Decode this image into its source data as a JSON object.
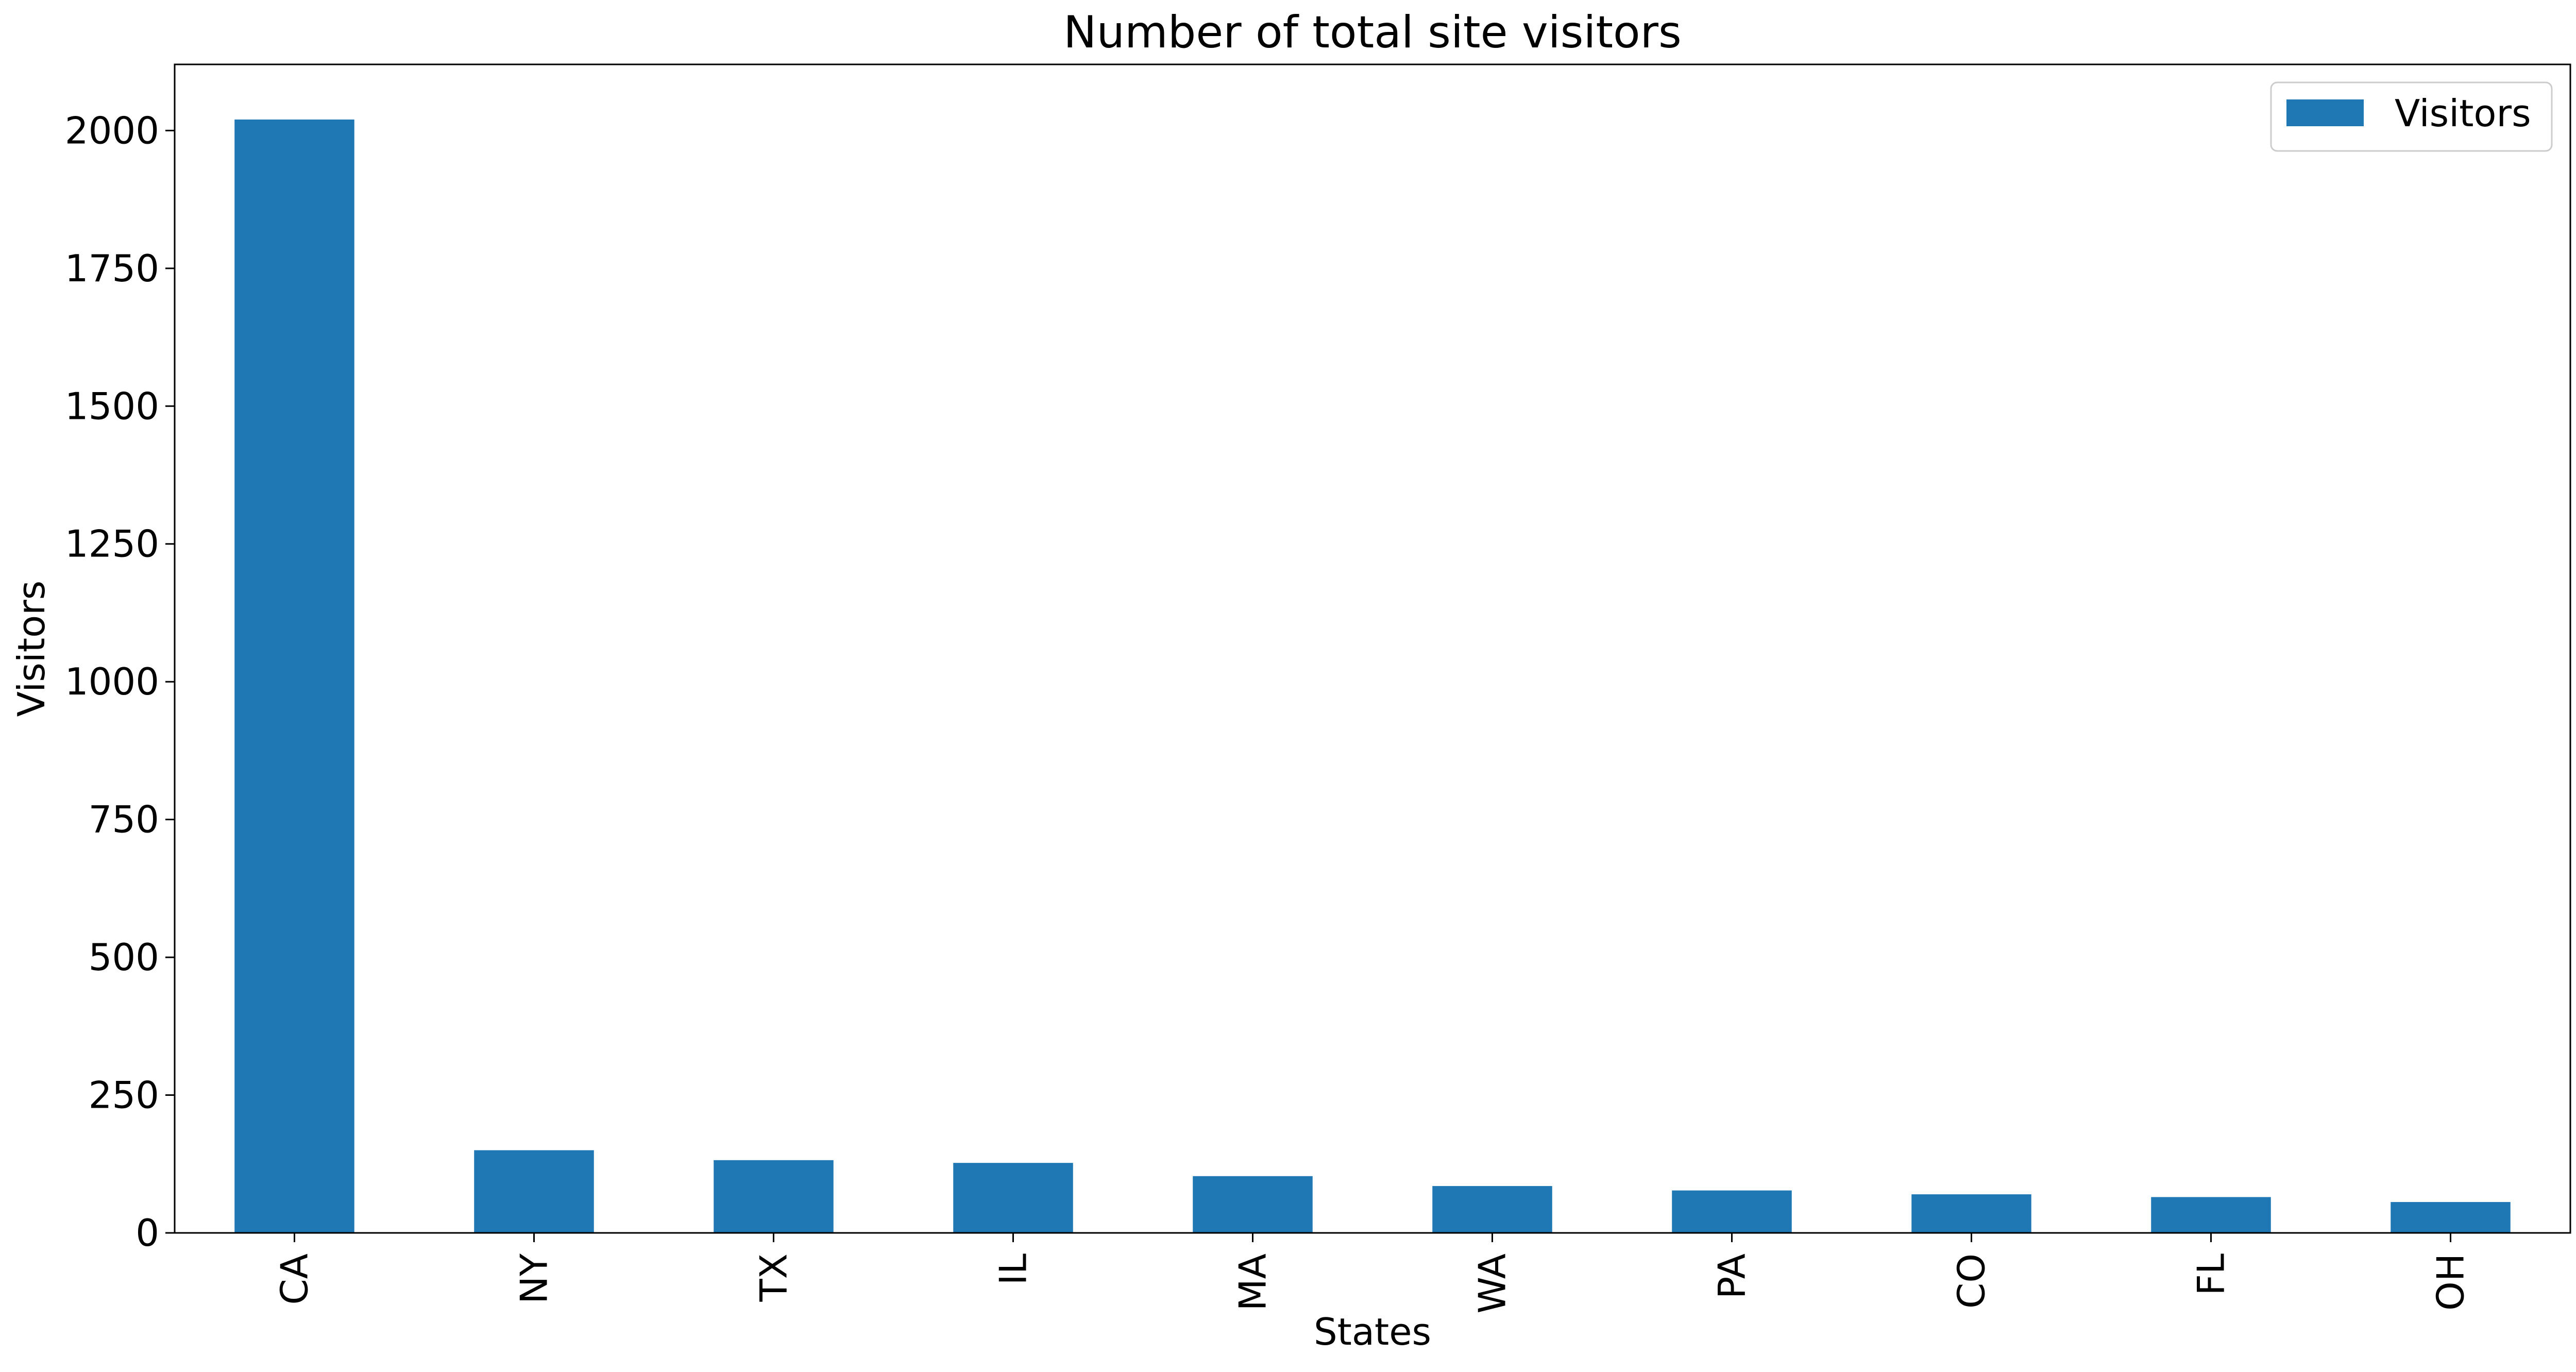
{
  "chart_data": {
    "type": "bar",
    "title": "Number of total site visitors",
    "xlabel": "States",
    "ylabel": "Visitors",
    "categories": [
      "CA",
      "NY",
      "TX",
      "IL",
      "MA",
      "WA",
      "PA",
      "CO",
      "FL",
      "OH"
    ],
    "series": [
      {
        "name": "Visitors",
        "values": [
          2020,
          150,
          132,
          127,
          103,
          85,
          77,
          70,
          65,
          56
        ],
        "color": "#1f77b4"
      }
    ],
    "ylim": [
      0,
      2120
    ],
    "yticks": [
      0,
      250,
      500,
      750,
      1000,
      1250,
      1500,
      1750,
      2000
    ],
    "grid": false,
    "legend_position": "top-right"
  }
}
